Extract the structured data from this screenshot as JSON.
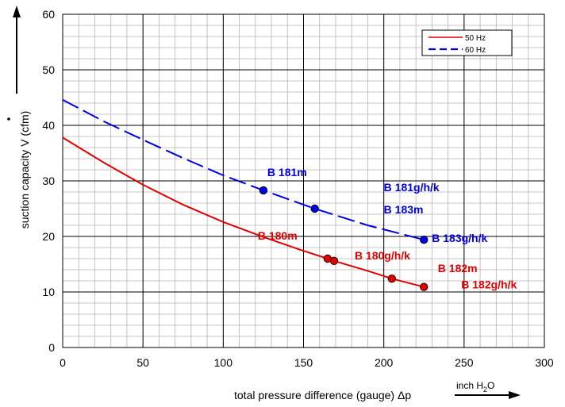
{
  "chart_data": {
    "type": "line",
    "xlabel": "total pressure difference (gauge) Δp",
    "x_unit": "inch H2O",
    "ylabel": "suction capacity V (cfm)",
    "xlim": [
      0,
      300
    ],
    "ylim": [
      0,
      60
    ],
    "x_major_ticks": [
      0,
      50,
      100,
      150,
      200,
      250,
      300
    ],
    "y_major_ticks": [
      0,
      10,
      20,
      30,
      40,
      50,
      60
    ],
    "x_minor_step": 10,
    "y_minor_step": 2,
    "grid": true,
    "legend_position": "top-right",
    "series": [
      {
        "name": "50 Hz",
        "color": "#e00000",
        "style": "solid",
        "x": [
          0,
          25,
          50,
          75,
          100,
          125,
          150,
          165,
          169,
          190,
          205,
          225
        ],
        "y": [
          37.8,
          33.4,
          29.3,
          25.7,
          22.6,
          19.9,
          17.4,
          16.0,
          15.6,
          13.8,
          12.4,
          10.9
        ]
      },
      {
        "name": "60 Hz",
        "color": "#0000e0",
        "style": "dashed",
        "x": [
          0,
          25,
          50,
          75,
          100,
          125,
          157,
          190,
          225
        ],
        "y": [
          44.6,
          40.8,
          37.4,
          34.1,
          31.0,
          28.3,
          25.0,
          22.0,
          19.4
        ]
      }
    ],
    "markers": [
      {
        "label": "B 181m",
        "x": 125,
        "y": 28.3,
        "color": "#0000e0"
      },
      {
        "label": "B 181g/h/k",
        "x": 157,
        "y": 25.0,
        "color": "#0000e0"
      },
      {
        "label": "B 183m",
        "x": 157,
        "y": 25.0,
        "color": "#0000e0"
      },
      {
        "label": "B 183g/h/k",
        "x": 225,
        "y": 19.4,
        "color": "#0000e0"
      },
      {
        "label": "B 180m",
        "x": 165,
        "y": 16.0,
        "color": "#e00000"
      },
      {
        "label": "B 180g/h/k",
        "x": 169,
        "y": 15.6,
        "color": "#e00000"
      },
      {
        "label": "B 182m",
        "x": 205,
        "y": 12.4,
        "color": "#e00000"
      },
      {
        "label": "B 182g/h/k",
        "x": 225,
        "y": 10.9,
        "color": "#e00000"
      }
    ]
  }
}
